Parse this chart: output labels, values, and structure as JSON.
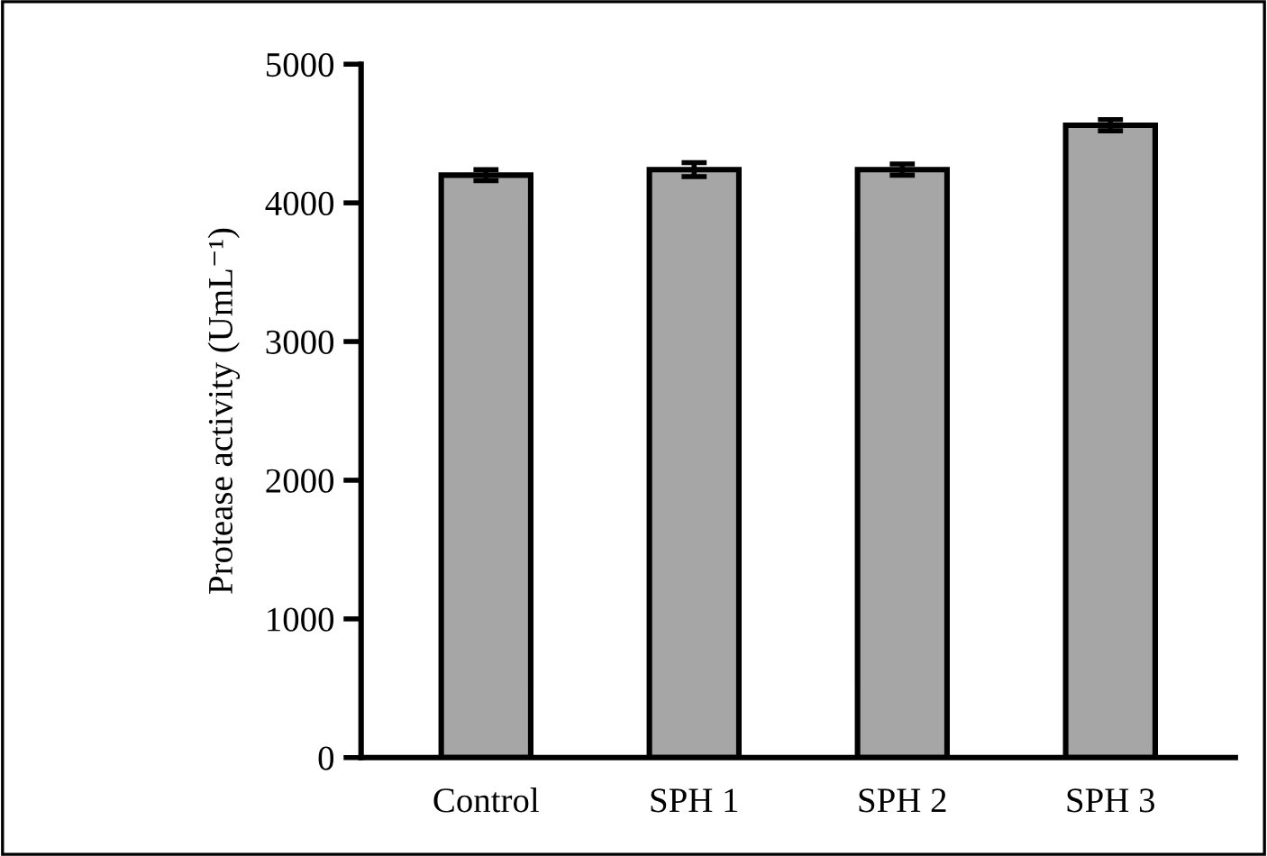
{
  "chart_data": {
    "type": "bar",
    "ylabel": "Protease activity (UmL⁻¹)",
    "categories": [
      "Control",
      "SPH 1",
      "SPH 2",
      "SPH 3"
    ],
    "values": [
      4200,
      4240,
      4240,
      4560
    ],
    "errors": [
      40,
      50,
      40,
      40
    ],
    "color": "#a6a6a6",
    "ylim": [
      0,
      5000
    ],
    "yticks": [
      0,
      1000,
      2000,
      3000,
      4000,
      5000
    ],
    "grid": false,
    "legend": false
  }
}
